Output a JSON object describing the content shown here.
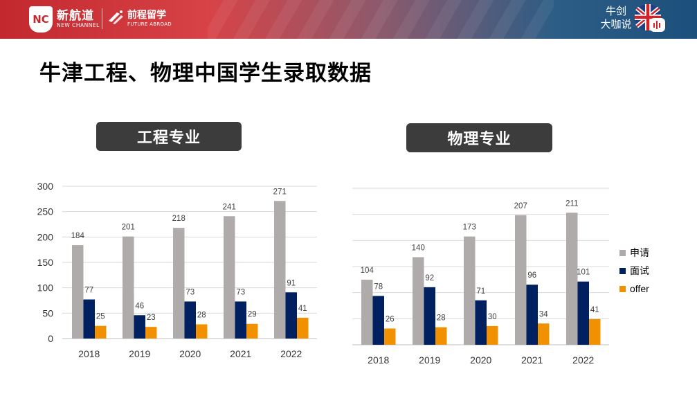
{
  "header": {
    "logo_mark": "NC",
    "logo_name": "新航道",
    "logo_sub": "NEW CHANNEL",
    "logo2_name": "前程留学",
    "logo2_sub": "FUTURE ABROAD",
    "brand_line1": "牛剑",
    "brand_line2": "大咖说",
    "flag_icon": "uk-flag-podcast-icon"
  },
  "page_title": "牛津工程、物理中国学生录取数据",
  "colors": {
    "applied": "#afabab",
    "interview": "#002060",
    "offer": "#f29100"
  },
  "legend": [
    "申请",
    "面试",
    "offer"
  ],
  "chart_data": [
    {
      "type": "bar",
      "title": "工程专业",
      "categories": [
        "2018",
        "2019",
        "2020",
        "2021",
        "2022"
      ],
      "series": [
        {
          "name": "申请",
          "values": [
            184,
            201,
            218,
            241,
            271
          ]
        },
        {
          "name": "面试",
          "values": [
            77,
            46,
            73,
            73,
            91
          ]
        },
        {
          "name": "offer",
          "values": [
            25,
            23,
            28,
            29,
            41
          ]
        }
      ],
      "ylim": [
        0,
        300
      ],
      "yticks": [
        0,
        50,
        100,
        150,
        200,
        250,
        300
      ],
      "grid": true
    },
    {
      "type": "bar",
      "title": "物理专业",
      "categories": [
        "2018",
        "2019",
        "2020",
        "2021",
        "2022"
      ],
      "series": [
        {
          "name": "申请",
          "values": [
            104,
            140,
            173,
            207,
            211
          ]
        },
        {
          "name": "面试",
          "values": [
            78,
            92,
            71,
            96,
            101
          ]
        },
        {
          "name": "offer",
          "values": [
            26,
            28,
            30,
            34,
            41
          ]
        }
      ],
      "ylim": [
        0,
        250
      ],
      "grid": true,
      "legend": "right"
    }
  ]
}
